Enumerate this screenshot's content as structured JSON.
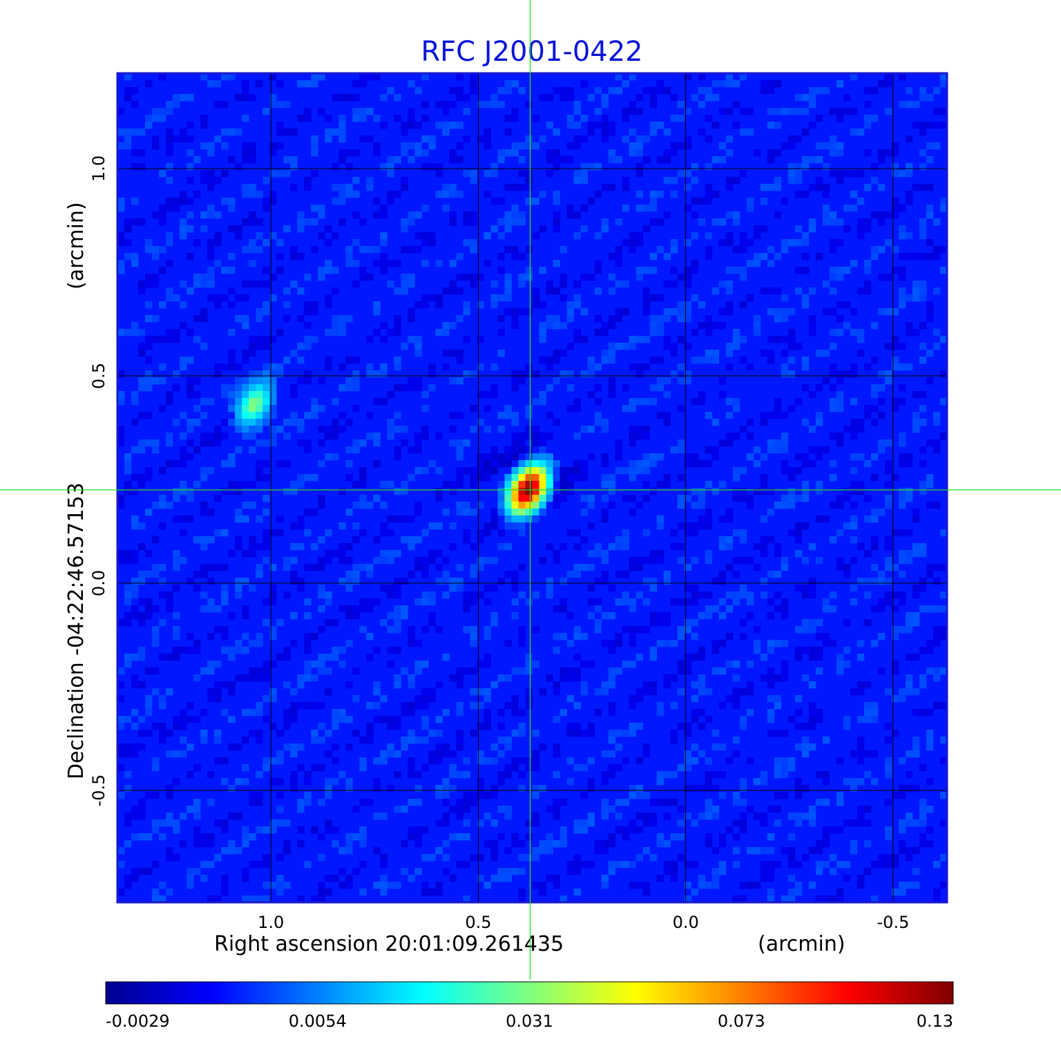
{
  "chart_data": {
    "type": "heatmap",
    "title": "RFC J2001-0422",
    "xlabel": "Right ascension  20:01:09.261435",
    "xunit": "(arcmin)",
    "ylabel": "Declination  -04:22:46.57153",
    "yunit": "(arcmin)",
    "xlim": [
      1.37,
      -0.63
    ],
    "ylim": [
      -0.77,
      1.23
    ],
    "x_ticks": [
      1.0,
      0.5,
      0.0,
      -0.5
    ],
    "x_tick_labels": [
      "1.0",
      "0.5",
      "0.0",
      "-0.5"
    ],
    "y_ticks": [
      1.0,
      0.5,
      0.0,
      -0.5
    ],
    "y_tick_labels": [
      "1.0",
      "0.5",
      "0.0",
      "-0.5"
    ],
    "grid": true,
    "crosshair": {
      "x": 0.375,
      "y": 0.225,
      "color": "#22dd22"
    },
    "colormap": "jet",
    "colorbar": {
      "orientation": "horizontal",
      "ticks": [
        -0.0029,
        0.0054,
        0.031,
        0.073,
        0.13
      ],
      "tick_labels": [
        "-0.0029",
        "0.0054",
        "0.031",
        "0.073",
        "0.13"
      ]
    },
    "background_level": 0.002,
    "sources": [
      {
        "x": 0.38,
        "y": 0.225,
        "peak": 0.13
      },
      {
        "x": 1.04,
        "y": 0.43,
        "peak": 0.031
      }
    ]
  }
}
